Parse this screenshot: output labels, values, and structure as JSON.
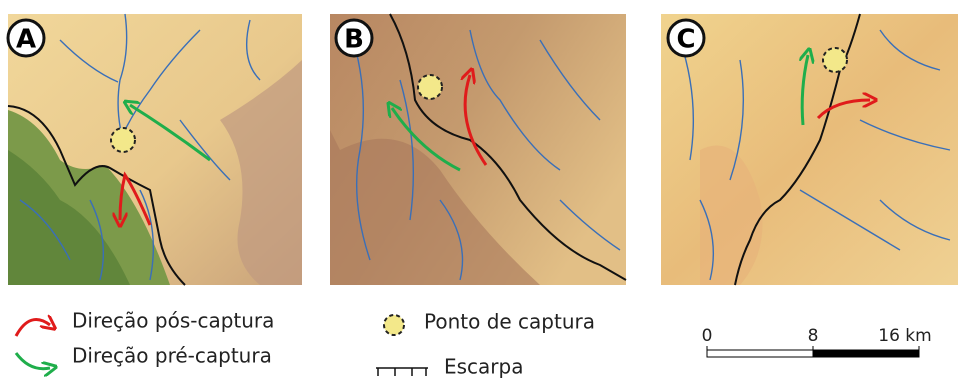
{
  "panels": [
    {
      "label": "A"
    },
    {
      "label": "B"
    },
    {
      "label": "C"
    }
  ],
  "legend": {
    "post_capture": "Direção pós-captura",
    "pre_capture": "Direção pré-captura",
    "capture_point": "Ponto de captura",
    "escarpment": "Escarpa"
  },
  "scale_bar": {
    "ticks": [
      0,
      8,
      {
        "value": 16,
        "label": "16 km"
      }
    ]
  }
}
